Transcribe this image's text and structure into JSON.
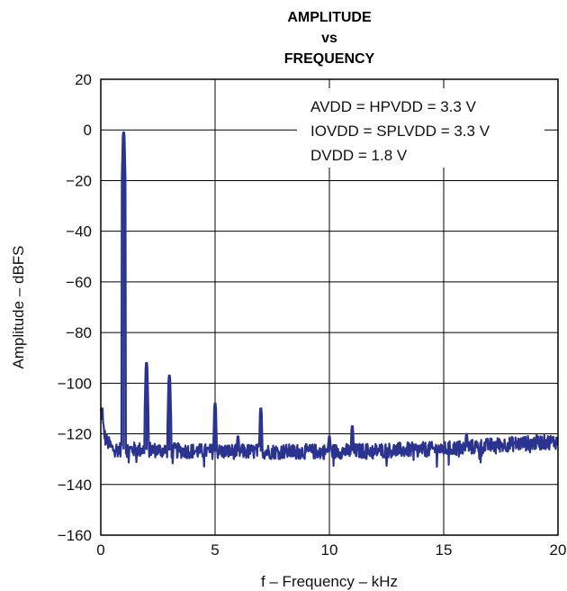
{
  "chart_data": {
    "type": "line",
    "title_lines": [
      "AMPLITUDE",
      "vs",
      "FREQUENCY"
    ],
    "xlabel": "f – Frequency – kHz",
    "ylabel": "Amplitude – dBFS",
    "xlim": [
      0,
      20
    ],
    "ylim": [
      -160,
      20
    ],
    "x_ticks": [
      0,
      5,
      10,
      15,
      20
    ],
    "y_ticks": [
      20,
      0,
      -20,
      -40,
      -60,
      -80,
      -100,
      -120,
      -140,
      -160
    ],
    "x_tick_labels": [
      "0",
      "5",
      "10",
      "15",
      "20"
    ],
    "y_tick_labels": [
      "20",
      "0",
      "−20",
      "−40",
      "−60",
      "−80",
      "−100",
      "−120",
      "−140",
      "−160"
    ],
    "grid": true,
    "annotations": [
      "AVDD = HPVDD = 3.3 V",
      "IOVDD = SPLVDD = 3.3 V",
      "DVDD = 1.8 V"
    ],
    "line_color": "#2b3390",
    "noise_floor": {
      "x": [
        0,
        0.2,
        0.5,
        5,
        10,
        15,
        18,
        20
      ],
      "y": [
        -112,
        -122,
        -126,
        -127,
        -127,
        -126,
        -124,
        -123
      ]
    },
    "peaks": [
      {
        "x": 0.05,
        "y": -110
      },
      {
        "x": 1.0,
        "y": -1
      },
      {
        "x": 2.0,
        "y": -92
      },
      {
        "x": 3.0,
        "y": -97
      },
      {
        "x": 5.0,
        "y": -108
      },
      {
        "x": 6.0,
        "y": -121
      },
      {
        "x": 7.0,
        "y": -110
      },
      {
        "x": 10.0,
        "y": -121
      },
      {
        "x": 11.0,
        "y": -117
      },
      {
        "x": 16.0,
        "y": -120
      }
    ]
  }
}
